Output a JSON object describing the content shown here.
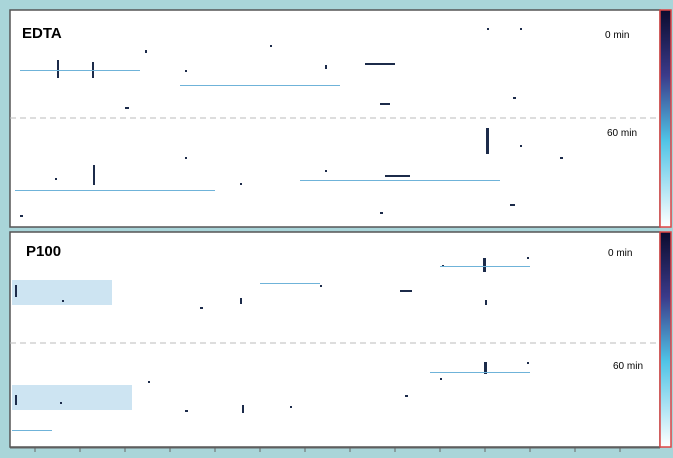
{
  "panels": [
    {
      "label": "EDTA",
      "rows": [
        "0 min",
        "60 min"
      ]
    },
    {
      "label": "P100",
      "rows": [
        "0 min",
        "60 min"
      ]
    }
  ]
}
